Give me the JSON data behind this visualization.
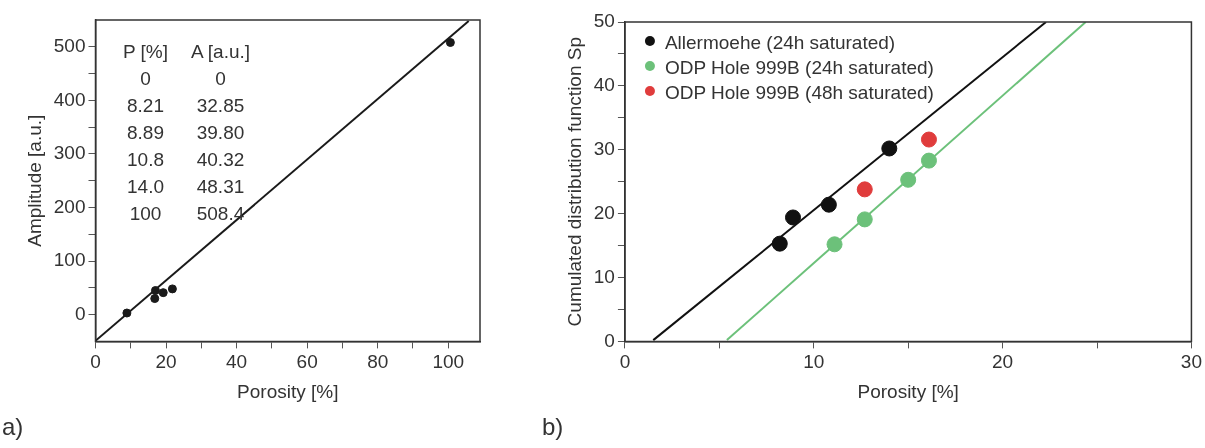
{
  "chart_data": [
    {
      "type": "scatter",
      "xlabel": "Porosity [%]",
      "ylabel": "Amplitude [a.u.]",
      "grid": false,
      "legend": false,
      "xlim": [
        0,
        109
      ],
      "ylim": [
        -50,
        550
      ],
      "xticks": [
        0,
        {
          "value": 10,
          "label": null
        },
        20,
        {
          "value": 30,
          "label": null
        },
        40,
        {
          "value": 50,
          "label": null
        },
        60,
        {
          "value": 70,
          "label": null
        },
        80,
        {
          "value": 90,
          "label": null
        },
        100
      ],
      "yticks": [
        0,
        {
          "value": 50,
          "label": null
        },
        100,
        {
          "value": 150,
          "label": null
        },
        200,
        {
          "value": 250,
          "label": null
        },
        300,
        {
          "value": 350,
          "label": null
        },
        400,
        {
          "value": 450,
          "label": null
        },
        500
      ],
      "series": [
        {
          "marker": "circle",
          "color": "#1a1a1a",
          "x": [
            8.9,
            16.8,
            17.0,
            19.2,
            21.8,
            100.6
          ],
          "values": [
            3,
            30,
            45,
            41,
            48,
            508
          ]
        },
        {
          "type": "line",
          "marker": "none",
          "color": "#1a1a1a",
          "x": [
            0,
            105.8
          ],
          "values": [
            -49,
            548
          ]
        }
      ],
      "annotations": [
        "P [%]  A [a.u.]",
        "0  0",
        "8.21  32.85",
        "8.89  39.80",
        "10.8  40.32",
        "14.0  48.31",
        "100  508.4",
        "a)"
      ]
    },
    {
      "type": "scatter",
      "xlabel": "Porosity [%]",
      "ylabel": "Cumulated distribution function Sp",
      "grid": false,
      "legend": "top left",
      "xlim": [
        0,
        30
      ],
      "ylim": [
        0,
        50
      ],
      "xticks": [
        0,
        {
          "value": 5,
          "label": null
        },
        10,
        {
          "value": 15,
          "label": null
        },
        20,
        {
          "value": 25,
          "label": null
        },
        30
      ],
      "yticks": [
        0,
        {
          "value": 5,
          "label": null
        },
        10,
        {
          "value": 15,
          "label": null
        },
        20,
        {
          "value": 25,
          "label": null
        },
        30,
        {
          "value": 35,
          "label": null
        },
        40,
        {
          "value": 45,
          "label": null
        },
        50
      ],
      "series": [
        {
          "name": "Allermoehe (24h saturated)",
          "marker": "circle",
          "color": "#111111",
          "x": [
            8.2,
            8.9,
            10.8,
            14.0
          ],
          "values": [
            15.3,
            19.4,
            21.4,
            30.2
          ]
        },
        {
          "name": "ODP Hole 999B (24h saturated)",
          "marker": "circle",
          "color": "#6cc17a",
          "x": [
            11.1,
            12.7,
            15.0,
            16.1
          ],
          "values": [
            15.2,
            19.1,
            25.3,
            28.3
          ]
        },
        {
          "name": "ODP Hole 999B (48h saturated)",
          "marker": "circle",
          "color": "#e03c3c",
          "x": [
            12.7,
            16.1
          ],
          "values": [
            23.8,
            31.6
          ]
        },
        {
          "type": "line",
          "marker": "none",
          "color": "#111111",
          "x": [
            1.5,
            22.3
          ],
          "values": [
            0.2,
            50
          ]
        },
        {
          "type": "line",
          "marker": "none",
          "color": "#6cc17a",
          "x": [
            5.4,
            24.4
          ],
          "values": [
            0.2,
            50
          ]
        }
      ],
      "annotations": [
        "b)"
      ]
    }
  ]
}
